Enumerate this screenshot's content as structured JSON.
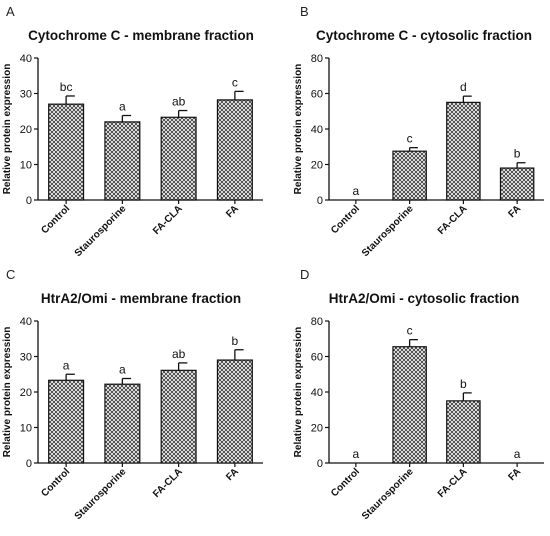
{
  "chart_data": [
    {
      "panel_label": "A",
      "type": "bar",
      "title": "Cytochrome C - membrane fraction",
      "ylabel": "Relative protein expression",
      "ylim": [
        0,
        40
      ],
      "yticks": [
        "0",
        "10",
        "20",
        "30",
        "40"
      ],
      "categories": [
        "Control",
        "Staurosporine",
        "FA-CLA",
        "FA"
      ],
      "values": [
        27,
        22,
        23.3,
        28.2
      ],
      "errors": [
        2.3,
        1.8,
        1.9,
        2.4
      ],
      "letters": [
        "bc",
        "a",
        "ab",
        "c"
      ]
    },
    {
      "panel_label": "B",
      "type": "bar",
      "title": "Cytochrome C - cytosolic fraction",
      "ylabel": "Relative protein expression",
      "ylim": [
        0,
        80
      ],
      "yticks": [
        "0",
        "20",
        "40",
        "60",
        "80"
      ],
      "categories": [
        "Control",
        "Staurosporine",
        "FA-CLA",
        "FA"
      ],
      "values": [
        0,
        27.5,
        55,
        18
      ],
      "errors": [
        0,
        2,
        3.5,
        3
      ],
      "letters": [
        "a",
        "c",
        "d",
        "b"
      ]
    },
    {
      "panel_label": "C",
      "type": "bar",
      "title": "HtrA2/Omi - membrane fraction",
      "ylabel": "Relative protein expression",
      "ylim": [
        0,
        40
      ],
      "yticks": [
        "0",
        "10",
        "20",
        "30",
        "40"
      ],
      "categories": [
        "Control",
        "Staurosporine",
        "FA-CLA",
        "FA"
      ],
      "values": [
        23.3,
        22.2,
        26.1,
        29
      ],
      "errors": [
        1.7,
        1.6,
        2.1,
        2.9
      ],
      "letters": [
        "a",
        "a",
        "ab",
        "b"
      ]
    },
    {
      "panel_label": "D",
      "type": "bar",
      "title": "HtrA2/Omi - cytosolic fraction",
      "ylabel": "Relative protein expression",
      "ylim": [
        0,
        80
      ],
      "yticks": [
        "0",
        "20",
        "40",
        "60",
        "80"
      ],
      "categories": [
        "Control",
        "Staurosporine",
        "FA-CLA",
        "FA"
      ],
      "values": [
        0,
        65.5,
        35,
        0
      ],
      "errors": [
        0,
        4,
        4.5,
        0
      ],
      "letters": [
        "a",
        "c",
        "b",
        "a"
      ]
    }
  ]
}
